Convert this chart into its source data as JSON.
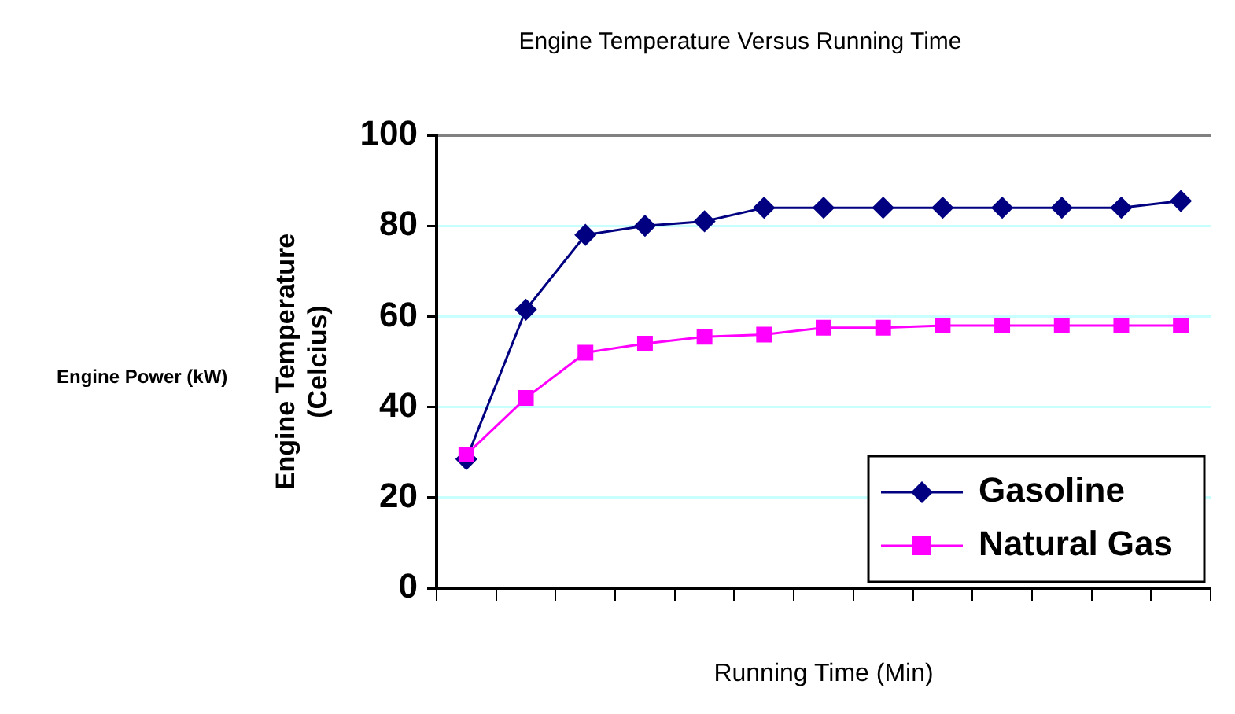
{
  "chart_data": {
    "type": "line",
    "title": "Engine Temperature Versus Running Time",
    "xlabel": "Running Time (Min)",
    "ylabel": "Engine Temperature (Celcius)",
    "annotations": [
      "Engine Power (kW)"
    ],
    "categories": [
      null,
      null,
      null,
      null,
      null,
      null,
      null,
      null,
      null,
      null,
      null,
      null,
      null
    ],
    "series": [
      {
        "name": "Gasoline",
        "color": "#000080",
        "marker": "diamond",
        "values": [
          28.5,
          61.5,
          78,
          80,
          81,
          84,
          84,
          84,
          84,
          84,
          84,
          84,
          85.5
        ]
      },
      {
        "name": "Natural Gas",
        "color": "#ff00ff",
        "marker": "square",
        "values": [
          29.5,
          42,
          52,
          54,
          55.5,
          56,
          57.5,
          57.5,
          58,
          58,
          58,
          58,
          58
        ]
      }
    ],
    "ylim": [
      0,
      100
    ],
    "yticks": [
      0,
      20,
      40,
      60,
      80,
      100
    ],
    "grid": "y",
    "legend": "bottom right"
  }
}
